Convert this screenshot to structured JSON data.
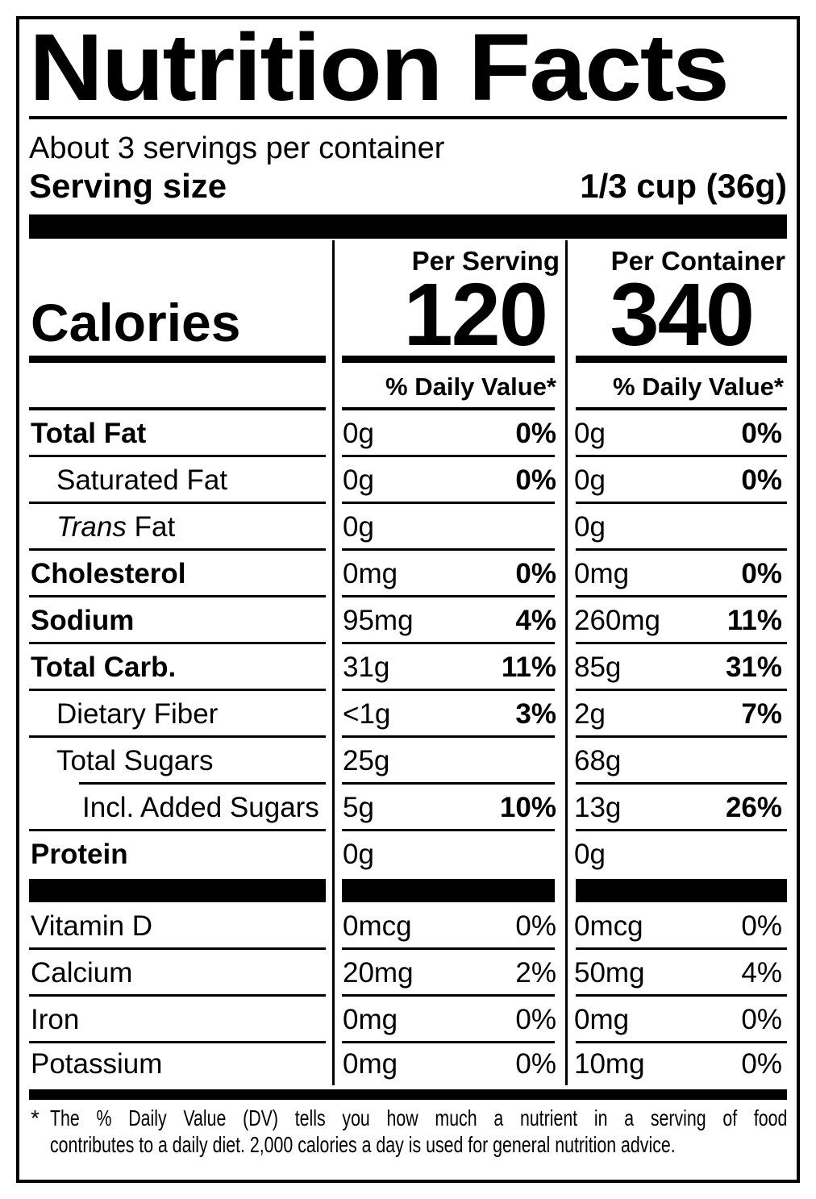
{
  "colors": {
    "ink": "#000000",
    "paper": "#ffffff"
  },
  "title": "Nutrition Facts",
  "servings_per_container": "About 3 servings per container",
  "serving_size": {
    "label": "Serving size",
    "value": "1/3 cup (36g)"
  },
  "calories": {
    "label": "Calories",
    "per_serving": {
      "header": "Per Serving",
      "value": "120",
      "dv_header": "% Daily Value*"
    },
    "per_container": {
      "header": "Per Container",
      "value": "340",
      "dv_header": "% Daily Value*"
    }
  },
  "nutrients": [
    {
      "name": "Total Fat",
      "bold": true,
      "indent": 0,
      "per_serving": {
        "amount": "0g",
        "dv": "0%"
      },
      "per_container": {
        "amount": "0g",
        "dv": "0%"
      }
    },
    {
      "name": "Saturated Fat",
      "bold": false,
      "indent": 1,
      "per_serving": {
        "amount": "0g",
        "dv": "0%"
      },
      "per_container": {
        "amount": "0g",
        "dv": "0%"
      }
    },
    {
      "name_italic": "Trans",
      "name": " Fat",
      "bold": false,
      "indent": 1,
      "per_serving": {
        "amount": "0g",
        "dv": ""
      },
      "per_container": {
        "amount": "0g",
        "dv": ""
      }
    },
    {
      "name": "Cholesterol",
      "bold": true,
      "indent": 0,
      "per_serving": {
        "amount": "0mg",
        "dv": "0%"
      },
      "per_container": {
        "amount": "0mg",
        "dv": "0%"
      }
    },
    {
      "name": "Sodium",
      "bold": true,
      "indent": 0,
      "per_serving": {
        "amount": "95mg",
        "dv": "4%"
      },
      "per_container": {
        "amount": "260mg",
        "dv": "11%"
      }
    },
    {
      "name": "Total Carb.",
      "bold": true,
      "indent": 0,
      "per_serving": {
        "amount": "31g",
        "dv": "11%"
      },
      "per_container": {
        "amount": "85g",
        "dv": "31%"
      }
    },
    {
      "name": "Dietary Fiber",
      "bold": false,
      "indent": 1,
      "per_serving": {
        "amount": "<1g",
        "dv": "3%"
      },
      "per_container": {
        "amount": "2g",
        "dv": "7%"
      }
    },
    {
      "name": "Total Sugars",
      "bold": false,
      "indent": 1,
      "indent_bottom_line": true,
      "per_serving": {
        "amount": "25g",
        "dv": ""
      },
      "per_container": {
        "amount": "68g",
        "dv": ""
      }
    },
    {
      "name": "Incl. Added Sugars",
      "bold": false,
      "indent": 2,
      "per_serving": {
        "amount": "5g",
        "dv": "10%"
      },
      "per_container": {
        "amount": "13g",
        "dv": "26%"
      }
    },
    {
      "name": "Protein",
      "bold": true,
      "indent": 0,
      "no_bottom_line": true,
      "per_serving": {
        "amount": "0g",
        "dv": ""
      },
      "per_container": {
        "amount": "0g",
        "dv": ""
      }
    }
  ],
  "micronutrients": [
    {
      "name": "Vitamin D",
      "per_serving": {
        "amount": "0mcg",
        "dv": "0%"
      },
      "per_container": {
        "amount": "0mcg",
        "dv": "0%"
      }
    },
    {
      "name": "Calcium",
      "per_serving": {
        "amount": "20mg",
        "dv": "2%"
      },
      "per_container": {
        "amount": "50mg",
        "dv": "4%"
      }
    },
    {
      "name": "Iron",
      "per_serving": {
        "amount": "0mg",
        "dv": "0%"
      },
      "per_container": {
        "amount": "0mg",
        "dv": "0%"
      }
    },
    {
      "name": "Potassium",
      "no_bottom_line": true,
      "short": true,
      "per_serving": {
        "amount": "0mg",
        "dv": "0%"
      },
      "per_container": {
        "amount": "10mg",
        "dv": "0%"
      }
    }
  ],
  "footnote": {
    "marker": "*",
    "line1": "The % Daily Value (DV) tells you how much a nutrient in a serving of food",
    "line2": "contributes to a daily diet. 2,000 calories a day is used for general nutrition advice."
  }
}
